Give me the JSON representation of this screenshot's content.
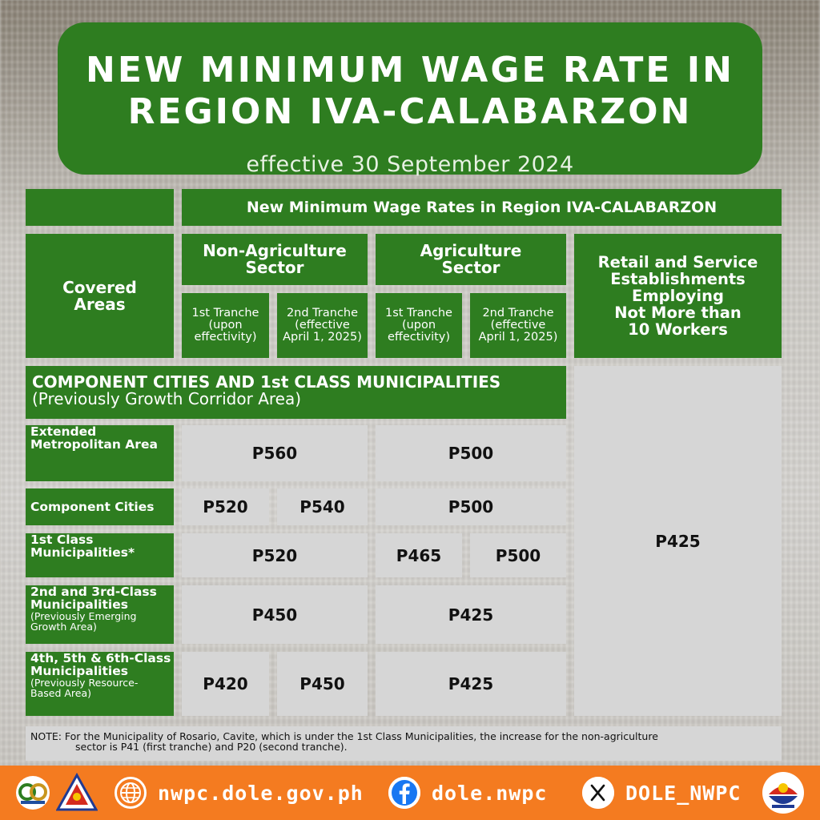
{
  "header": {
    "title_line1": "NEW MINIMUM WAGE RATE IN",
    "title_line2": "REGION IVA-CALABARZON",
    "subtitle": "effective 30 September 2024"
  },
  "table": {
    "main_header": "New Minimum Wage Rates in Region IVA-CALABARZON",
    "covered_areas_line1": "Covered",
    "covered_areas_line2": "Areas",
    "non_agri_line1": "Non-Agriculture",
    "non_agri_line2": "Sector",
    "agri_line1": "Agriculture",
    "agri_line2": "Sector",
    "retail_lines": [
      "Retail and Service",
      "Establishments",
      "Employing",
      "Not More than",
      "10 Workers"
    ],
    "tranche1_lines": [
      "1st Tranche",
      "(upon",
      "effectivity)"
    ],
    "tranche2_lines": [
      "2nd Tranche",
      "(effective",
      "April 1, 2025)"
    ],
    "section_title": "COMPONENT CITIES AND 1st CLASS MUNICIPALITIES",
    "section_subtitle": "(Previously Growth Corridor Area)",
    "retail_value": "P425",
    "rows": [
      {
        "label_lines": [
          "Extended",
          "Metropolitan Area"
        ],
        "note": "",
        "non_agri": "P560",
        "agri": "P500"
      },
      {
        "label_lines": [
          "Component Cities"
        ],
        "note": "",
        "non_agri_1": "P520",
        "non_agri_2": "P540",
        "agri": "P500"
      },
      {
        "label_lines": [
          "1st Class",
          "Municipalities*"
        ],
        "note": "",
        "non_agri": "P520",
        "agri_1": "P465",
        "agri_2": "P500"
      },
      {
        "label_lines": [
          "2nd and 3rd-Class",
          "Municipalities"
        ],
        "note_lines": [
          "(Previously Emerging",
          "Growth Area)"
        ],
        "non_agri": "P450",
        "agri": "P425"
      },
      {
        "label_lines": [
          "4th, 5th & 6th-Class",
          "Municipalities"
        ],
        "note_lines": [
          "(Previously Resource-",
          "Based Area)"
        ],
        "non_agri_1": "P420",
        "non_agri_2": "P450",
        "agri": "P425"
      }
    ]
  },
  "note": {
    "line1": "NOTE: For the Municipality of Rosario, Cavite, which is under the 1st Class Municipalities, the increase for the non-agriculture",
    "line2": "sector is P41 (first tranche) and P20 (second tranche)."
  },
  "footer": {
    "website": "nwpc.dole.gov.ph",
    "facebook": "dole.nwpc",
    "x_handle": "DOLE_NWPC",
    "icons": [
      "anniversary-logo",
      "dole-seal",
      "globe-icon",
      "facebook-icon",
      "x-icon",
      "bagong-pilipinas-logo"
    ]
  },
  "colors": {
    "green": "#2e7d20",
    "gray": "#d6d6d6",
    "orange": "#f47b20"
  }
}
